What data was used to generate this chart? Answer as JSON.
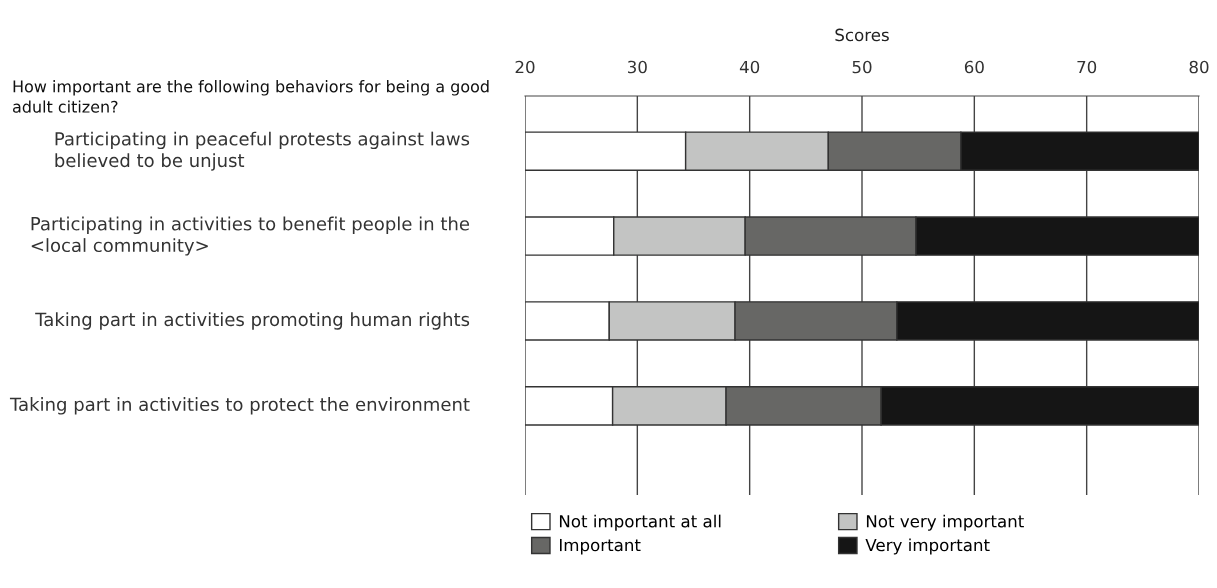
{
  "chart_data": {
    "type": "bar",
    "orientation": "horizontal",
    "title": "How important are the following behaviors for being a good adult citizen?",
    "xlabel": "Scores",
    "categories": [
      "Participating in peaceful protests against laws believed to be unjust",
      "Participating in activities to benefit people in the <local community>",
      "Taking part in activities promoting human rights",
      "Taking part in activities to protect the environment"
    ],
    "series": [
      {
        "name": "Not important at all",
        "color": "#ffffff",
        "base": [
          20,
          20,
          20,
          20
        ],
        "values": [
          14.3,
          7.9,
          7.5,
          7.8
        ]
      },
      {
        "name": "Not very important",
        "color": "#c3c4c3",
        "base": [
          34.3,
          27.9,
          27.5,
          27.8
        ],
        "values": [
          12.7,
          11.7,
          11.2,
          10.1
        ]
      },
      {
        "name": "Important",
        "color": "#676765",
        "base": [
          47.0,
          39.6,
          38.7,
          37.9
        ],
        "values": [
          11.8,
          15.2,
          14.4,
          13.8
        ]
      },
      {
        "name": "Very important",
        "color": "#151515",
        "base": [
          58.8,
          54.8,
          53.1,
          51.7
        ],
        "values": [
          21.2,
          25.2,
          26.9,
          28.3
        ]
      }
    ],
    "xlim": [
      20,
      80
    ],
    "xticks": [
      20,
      30,
      40,
      50,
      60,
      70,
      80
    ],
    "grid": "x",
    "legend": "bottom"
  }
}
